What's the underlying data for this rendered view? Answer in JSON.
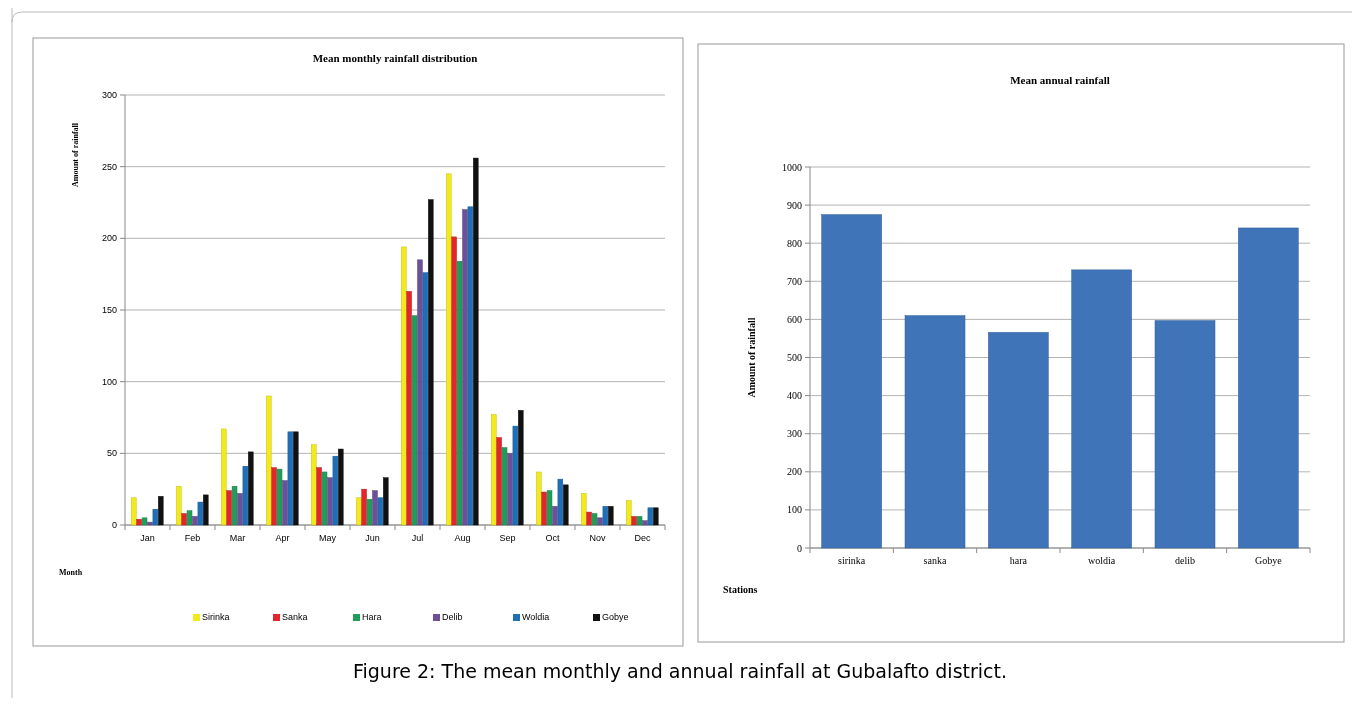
{
  "chart_data": [
    {
      "type": "bar",
      "title": "Mean monthly  rainfall distribution",
      "ylabel": "Amount of rainfall",
      "xlabel": "Month",
      "categories": [
        "Jan",
        "Feb",
        "Mar",
        "Apr",
        "May",
        "Jun",
        "Jul",
        "Aug",
        "Sep",
        "Oct",
        "Nov",
        "Dec"
      ],
      "series": [
        {
          "name": "Sirinka",
          "color": "#f2ea1c",
          "values": [
            19,
            27,
            67,
            90,
            56,
            19,
            194,
            245,
            77,
            37,
            22,
            17
          ]
        },
        {
          "name": "Sanka",
          "color": "#e3262b",
          "values": [
            4,
            8,
            24,
            40,
            40,
            25,
            163,
            201,
            61,
            23,
            9,
            6
          ]
        },
        {
          "name": "Hara",
          "color": "#1f9e5a",
          "values": [
            5,
            10,
            27,
            39,
            37,
            18,
            146,
            184,
            54,
            24,
            8,
            6
          ]
        },
        {
          "name": "Delib",
          "color": "#6e4f9a",
          "values": [
            2,
            6,
            22,
            31,
            33,
            24,
            185,
            220,
            50,
            13,
            5,
            3
          ]
        },
        {
          "name": "Woldia",
          "color": "#1f6fb8",
          "values": [
            11,
            16,
            41,
            65,
            48,
            19,
            176,
            222,
            69,
            32,
            13,
            12
          ]
        },
        {
          "name": "Gobye",
          "color": "#111111",
          "values": [
            20,
            21,
            51,
            65,
            53,
            33,
            227,
            256,
            80,
            28,
            13,
            12
          ]
        }
      ],
      "ylim": [
        0,
        300
      ],
      "yticks": [
        0,
        50,
        100,
        150,
        200,
        250,
        300
      ],
      "grid": "y",
      "legend": "bottom",
      "annotations": [
        "Figure 2: The mean monthly and annual rainfall at Gubalafto district."
      ]
    },
    {
      "type": "bar",
      "title": "Mean annual rainfall",
      "ylabel": "Amount of rainfall",
      "xlabel": "Stations",
      "categories": [
        "sirinka",
        "sanka",
        "hara",
        "woldia",
        "delib",
        "Gobye"
      ],
      "values": [
        875,
        610,
        566,
        730,
        597,
        840
      ],
      "color": "#3f74b9",
      "ylim": [
        0,
        1000
      ],
      "yticks": [
        0,
        100,
        200,
        300,
        400,
        500,
        600,
        700,
        800,
        900,
        1000
      ],
      "grid": "y"
    }
  ]
}
